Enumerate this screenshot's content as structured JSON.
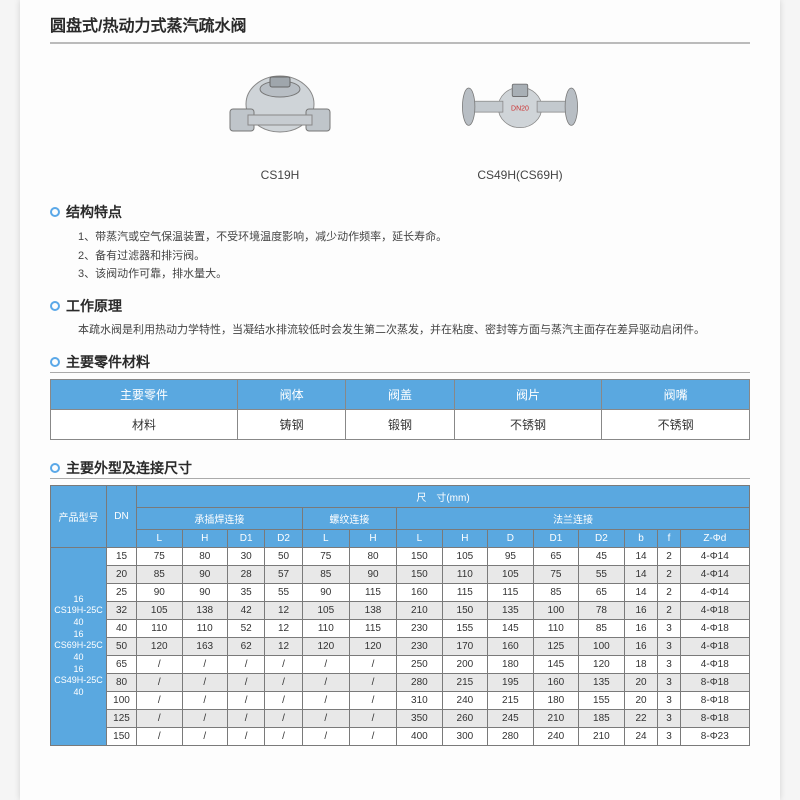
{
  "title": "圆盘式/热动力式蒸汽疏水阀",
  "products": [
    {
      "label": "CS19H"
    },
    {
      "label": "CS49H(CS69H)"
    }
  ],
  "sections": {
    "features": {
      "heading": "结构特点",
      "items": [
        "1、带蒸汽或空气保温装置，不受环境温度影响，减少动作频率，延长寿命。",
        "2、备有过滤器和排污阀。",
        "3、该阀动作可靠，排水量大。"
      ]
    },
    "principle": {
      "heading": "工作原理",
      "text": "本疏水阀是利用热动力学特性，当凝结水排流较低时会发生第二次蒸发，并在粘度、密封等方面与蒸汽主面存在差异驱动启闭件。"
    },
    "materials": {
      "heading": "主要零件材料",
      "headers": [
        "主要零件",
        "阀体",
        "阀盖",
        "阀片",
        "阀嘴"
      ],
      "row": [
        "材料",
        "铸钢",
        "锻钢",
        "不锈钢",
        "不锈钢"
      ]
    },
    "dimensions": {
      "heading": "主要外型及连接尺寸",
      "top_header": "尺　寸(mm)",
      "group_headers": [
        "承插焊连接",
        "螺纹连接",
        "法兰连接"
      ],
      "sub_headers_socket": [
        "L",
        "H",
        "D1",
        "D2"
      ],
      "sub_headers_thread": [
        "L",
        "H"
      ],
      "sub_headers_flange": [
        "L",
        "H",
        "D",
        "D1",
        "D2",
        "b",
        "f",
        "Z-Φd"
      ],
      "col_product": "产品型号",
      "col_dn": "DN",
      "model_label": "16\nCS19H-25C\n40\n16\nCS69H-25C\n40\n16\nCS49H-25C\n40",
      "rows": [
        {
          "dn": "15",
          "s": [
            "75",
            "80",
            "30",
            "50"
          ],
          "t": [
            "75",
            "80"
          ],
          "f": [
            "150",
            "105",
            "95",
            "65",
            "45",
            "14",
            "2",
            "4-Φ14"
          ]
        },
        {
          "dn": "20",
          "s": [
            "85",
            "90",
            "28",
            "57"
          ],
          "t": [
            "85",
            "90"
          ],
          "f": [
            "150",
            "110",
            "105",
            "75",
            "55",
            "14",
            "2",
            "4-Φ14"
          ]
        },
        {
          "dn": "25",
          "s": [
            "90",
            "90",
            "35",
            "55"
          ],
          "t": [
            "90",
            "115"
          ],
          "f": [
            "160",
            "115",
            "115",
            "85",
            "65",
            "14",
            "2",
            "4-Φ14"
          ]
        },
        {
          "dn": "32",
          "s": [
            "105",
            "138",
            "42",
            "12"
          ],
          "t": [
            "105",
            "138"
          ],
          "f": [
            "210",
            "150",
            "135",
            "100",
            "78",
            "16",
            "2",
            "4-Φ18"
          ]
        },
        {
          "dn": "40",
          "s": [
            "110",
            "110",
            "52",
            "12"
          ],
          "t": [
            "110",
            "115"
          ],
          "f": [
            "230",
            "155",
            "145",
            "110",
            "85",
            "16",
            "3",
            "4-Φ18"
          ]
        },
        {
          "dn": "50",
          "s": [
            "120",
            "163",
            "62",
            "12"
          ],
          "t": [
            "120",
            "120"
          ],
          "f": [
            "230",
            "170",
            "160",
            "125",
            "100",
            "16",
            "3",
            "4-Φ18"
          ]
        },
        {
          "dn": "65",
          "s": [
            "/",
            "/",
            "/",
            "/"
          ],
          "t": [
            "/",
            "/"
          ],
          "f": [
            "250",
            "200",
            "180",
            "145",
            "120",
            "18",
            "3",
            "4-Φ18"
          ]
        },
        {
          "dn": "80",
          "s": [
            "/",
            "/",
            "/",
            "/"
          ],
          "t": [
            "/",
            "/"
          ],
          "f": [
            "280",
            "215",
            "195",
            "160",
            "135",
            "20",
            "3",
            "8-Φ18"
          ]
        },
        {
          "dn": "100",
          "s": [
            "/",
            "/",
            "/",
            "/"
          ],
          "t": [
            "/",
            "/"
          ],
          "f": [
            "310",
            "240",
            "215",
            "180",
            "155",
            "20",
            "3",
            "8-Φ18"
          ]
        },
        {
          "dn": "125",
          "s": [
            "/",
            "/",
            "/",
            "/"
          ],
          "t": [
            "/",
            "/"
          ],
          "f": [
            "350",
            "260",
            "245",
            "210",
            "185",
            "22",
            "3",
            "8-Φ18"
          ]
        },
        {
          "dn": "150",
          "s": [
            "/",
            "/",
            "/",
            "/"
          ],
          "t": [
            "/",
            "/"
          ],
          "f": [
            "400",
            "300",
            "280",
            "240",
            "210",
            "24",
            "3",
            "8-Φ23"
          ]
        }
      ]
    }
  },
  "colors": {
    "header_blue": "#5aa8e0",
    "accent_bullet": "#5aa8e8",
    "border": "#7a7a7a",
    "alt_row": "#e8e8e8",
    "page_bg": "#fdfdfd"
  }
}
